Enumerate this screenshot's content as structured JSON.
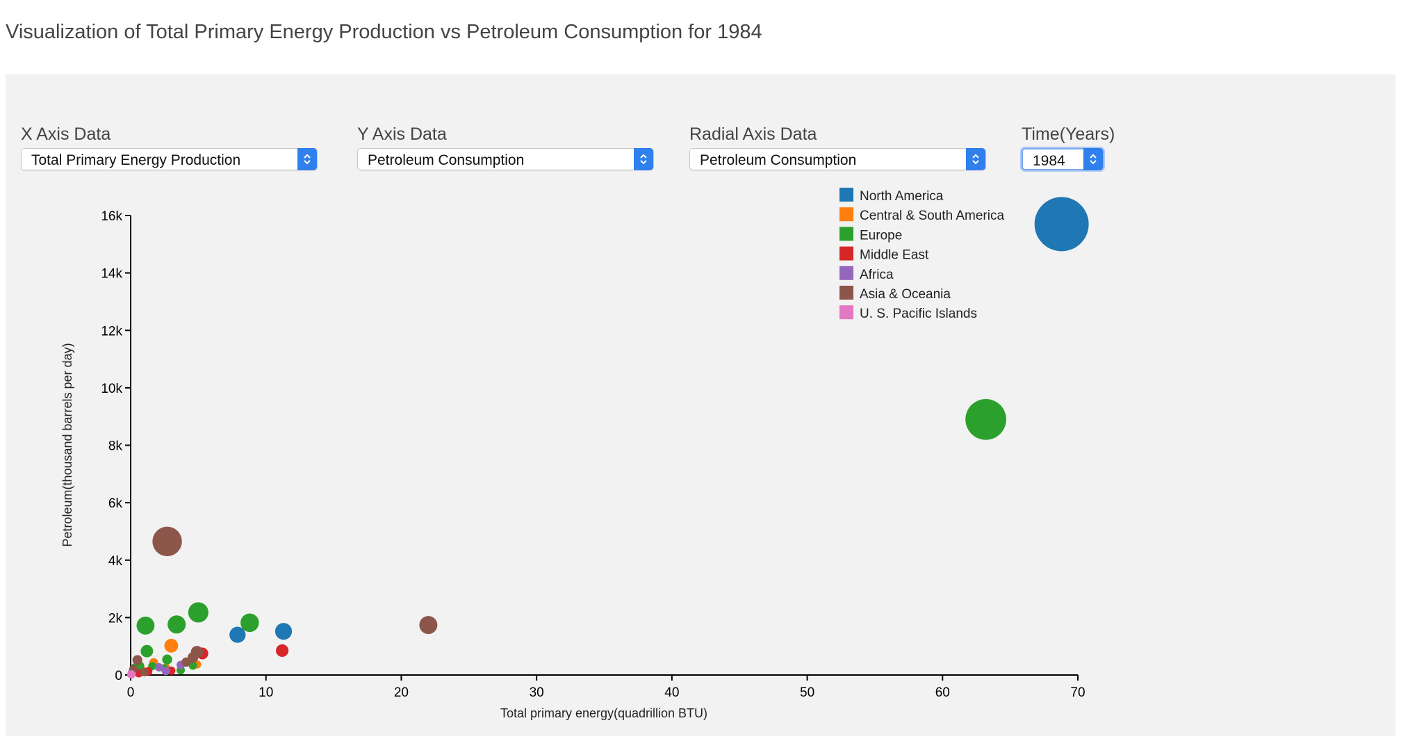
{
  "page": {
    "title": "Visualization of Total Primary Energy Production vs Petroleum Consumption for 1984"
  },
  "controls": {
    "x_axis": {
      "label": "X Axis Data",
      "selected": "Total Primary Energy Production"
    },
    "y_axis": {
      "label": "Y Axis Data",
      "selected": "Petroleum Consumption"
    },
    "radial_axis": {
      "label": "Radial Axis Data",
      "selected": "Petroleum Consumption"
    },
    "time": {
      "label": "Time(Years)",
      "selected": "1984"
    }
  },
  "colors": {
    "North America": "#1f77b4",
    "Central & South America": "#ff7f0e",
    "Europe": "#2ca02c",
    "Middle East": "#d62728",
    "Africa": "#9467bd",
    "Asia & Oceania": "#8c564b",
    "U. S. Pacific Islands": "#e377c2",
    "panel_background": "#f2f2f2",
    "control_accent": "#2f80ed"
  },
  "icons": {
    "select_arrows": "up-down-chevron-icon"
  },
  "chart_data": {
    "type": "scatter",
    "xlabel": "Total primary energy(quadrillion BTU)",
    "ylabel": "Petroleum(thousand barrels per day)",
    "xlim": [
      0,
      70
    ],
    "ylim": [
      0,
      16000
    ],
    "x_ticks": [
      0,
      10,
      20,
      30,
      40,
      50,
      60,
      70
    ],
    "y_ticks": [
      0,
      2000,
      4000,
      6000,
      8000,
      10000,
      12000,
      14000,
      16000
    ],
    "x_tick_labels": [
      "0",
      "10",
      "20",
      "30",
      "40",
      "50",
      "60",
      "70"
    ],
    "y_tick_labels": [
      "0",
      "2k",
      "4k",
      "6k",
      "8k",
      "10k",
      "12k",
      "14k",
      "16k"
    ],
    "radius_encoding": "Petroleum Consumption",
    "legend": [
      "North America",
      "Central & South America",
      "Europe",
      "Middle East",
      "Africa",
      "Asia & Oceania",
      "U. S. Pacific Islands"
    ],
    "legend_position": "top-right",
    "grid": false,
    "series": [
      {
        "name": "North America",
        "points": [
          [
            68.8,
            15700
          ],
          [
            11.3,
            1520
          ],
          [
            7.9,
            1400
          ]
        ]
      },
      {
        "name": "Central & South America",
        "points": [
          [
            3.0,
            1020
          ],
          [
            1.7,
            430
          ],
          [
            4.9,
            370
          ],
          [
            0.9,
            150
          ],
          [
            2.6,
            260
          ]
        ]
      },
      {
        "name": "Europe",
        "points": [
          [
            63.2,
            8900
          ],
          [
            5.0,
            2180
          ],
          [
            8.8,
            1820
          ],
          [
            3.4,
            1760
          ],
          [
            1.1,
            1720
          ],
          [
            1.2,
            830
          ],
          [
            2.7,
            540
          ],
          [
            0.7,
            320
          ],
          [
            1.6,
            310
          ],
          [
            2.5,
            230
          ],
          [
            3.7,
            170
          ],
          [
            0.3,
            260
          ],
          [
            4.6,
            330
          ]
        ]
      },
      {
        "name": "Middle East",
        "points": [
          [
            11.2,
            850
          ],
          [
            5.3,
            750
          ],
          [
            1.3,
            130
          ],
          [
            3.0,
            150
          ],
          [
            0.6,
            60
          ]
        ]
      },
      {
        "name": "Africa",
        "points": [
          [
            3.7,
            350
          ],
          [
            2.1,
            270
          ],
          [
            0.1,
            80
          ],
          [
            2.6,
            140
          ]
        ]
      },
      {
        "name": "Asia & Oceania",
        "points": [
          [
            22.0,
            1740
          ],
          [
            2.7,
            4650
          ],
          [
            4.9,
            800
          ],
          [
            4.6,
            610
          ],
          [
            0.5,
            520
          ],
          [
            4.1,
            450
          ],
          [
            0.2,
            210
          ],
          [
            1.0,
            100
          ]
        ]
      },
      {
        "name": "U. S. Pacific Islands",
        "points": [
          [
            0.05,
            20
          ]
        ]
      }
    ]
  }
}
